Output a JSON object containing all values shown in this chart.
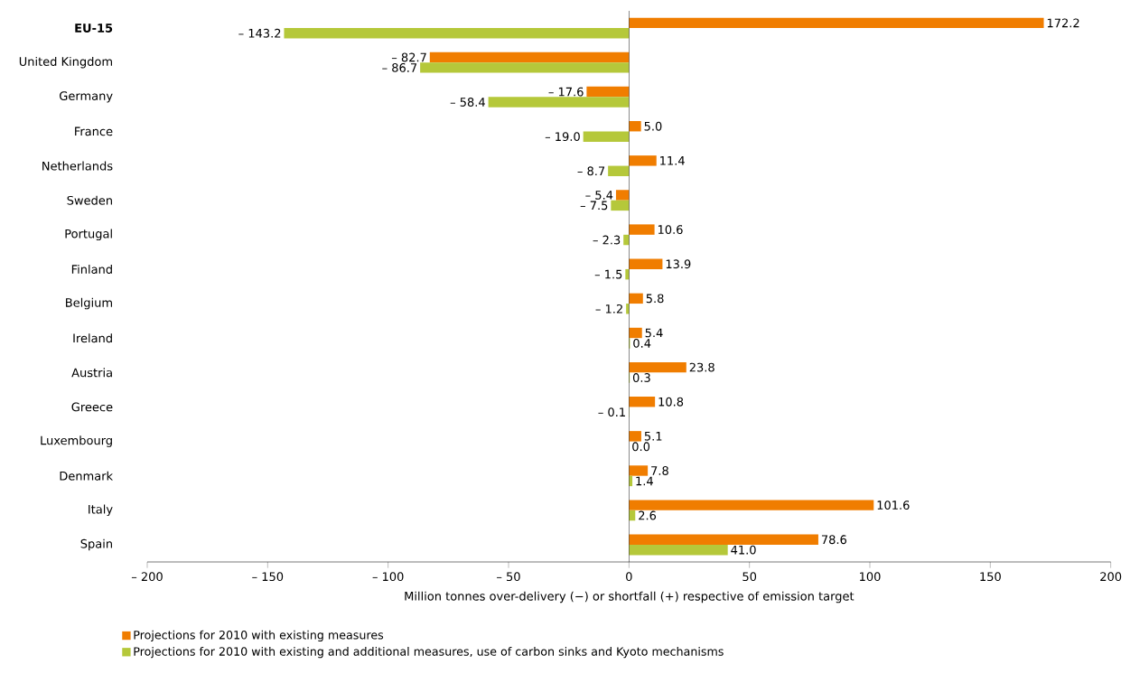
{
  "chart_data": {
    "type": "bar",
    "orientation": "horizontal",
    "xlabel": "Million tonnes over-delivery (−) or shortfall (+) respective of emission target",
    "categories": [
      "**EU-15**",
      "United Kingdom",
      "Germany",
      "France",
      "Netherlands",
      "Sweden",
      "Portugal",
      "Finland",
      "Belgium",
      "Ireland",
      "Austria",
      "Greece",
      "Luxembourg",
      "Denmark",
      "Italy",
      "Spain"
    ],
    "series": [
      {
        "name": "Projections for 2010 with existing measures",
        "color": "#f07d00",
        "values": [
          172.2,
          -82.7,
          -17.6,
          5.0,
          11.4,
          -5.4,
          10.6,
          13.9,
          5.8,
          5.4,
          23.8,
          10.8,
          5.1,
          7.8,
          101.6,
          78.6
        ],
        "value_labels": [
          "172.2",
          "– 82.7",
          "– 17.6",
          "5.0",
          "11.4",
          "– 5.4",
          "10.6",
          "13.9",
          "5.8",
          "5.4",
          "23.8",
          "10.8",
          "5.1",
          "7.8",
          "101.6",
          "78.6"
        ]
      },
      {
        "name": "Projections for 2010 with existing and additional measures, use of carbon sinks and Kyoto mechanisms",
        "color": "#b5c83a",
        "values": [
          -143.2,
          -86.7,
          -58.4,
          -19.0,
          -8.7,
          -7.5,
          -2.3,
          -1.5,
          -1.2,
          0.4,
          0.3,
          -0.1,
          0.0,
          1.4,
          2.6,
          41.0
        ],
        "value_labels": [
          "– 143.2",
          "– 86.7",
          "– 58.4",
          "– 19.0",
          "– 8.7",
          "– 7.5",
          "– 2.3",
          "– 1.5",
          "– 1.2",
          "0.4",
          "0.3",
          "– 0.1",
          "0.0",
          "1.4",
          "2.6",
          "41.0"
        ]
      }
    ],
    "xlim": [
      -200,
      200
    ],
    "xticks": [
      {
        "value": -200,
        "label": "– 200"
      },
      {
        "value": -150,
        "label": "– 150"
      },
      {
        "value": -100,
        "label": "– 100"
      },
      {
        "value": -50,
        "label": "– 50"
      },
      0,
      50,
      100,
      150,
      200
    ],
    "ref_lines": [
      {
        "axis": "x",
        "value": 0,
        "color": "#000000"
      }
    ],
    "grid": false,
    "legend": "bottom"
  }
}
